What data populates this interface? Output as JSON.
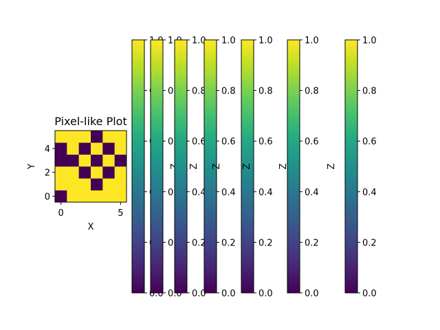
{
  "chart_data": [
    {
      "type": "heatmap",
      "title": "Pixel-like Plot",
      "xlabel": "X",
      "ylabel": "Y",
      "xlim": [
        -0.5,
        5.5
      ],
      "ylim": [
        -0.5,
        5.5
      ],
      "x_ticks": [
        0,
        5
      ],
      "y_ticks": [
        0,
        2,
        4
      ],
      "colormap": "viridis",
      "vmin": 0,
      "vmax": 1,
      "low_color": "#440154",
      "high_color": "#fde725",
      "rows_bottom_to_top": [
        [
          0,
          1,
          1,
          1,
          1,
          1
        ],
        [
          1,
          1,
          1,
          0,
          1,
          1
        ],
        [
          1,
          1,
          0,
          1,
          0,
          1
        ],
        [
          0,
          0,
          1,
          0,
          1,
          0
        ],
        [
          0,
          1,
          0,
          1,
          0,
          1
        ],
        [
          1,
          1,
          1,
          0,
          1,
          1
        ]
      ]
    },
    {
      "type": "colorbar",
      "count": 7,
      "label": "Z",
      "range": [
        0,
        1
      ],
      "ticks": [
        "0.0",
        "0.2",
        "0.4",
        "0.6",
        "0.8",
        "1.0"
      ]
    }
  ]
}
